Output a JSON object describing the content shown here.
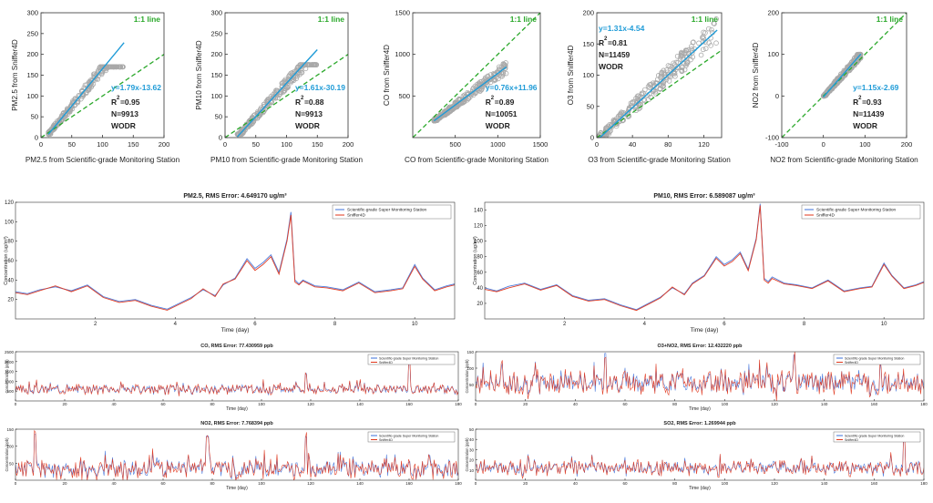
{
  "colors": {
    "scatter_gray": "#a9a9a9",
    "fit_blue": "#1f9bd7",
    "one_to_one_green": "#2aa82a",
    "series_blue": "#3b6fd9",
    "series_red": "#e0361b",
    "text_black": "#222222"
  },
  "chart_data": [
    {
      "type": "scatter",
      "xlabel": "PM2.5 from Scientific-grade Monitoring Station",
      "ylabel": "PM2.5 from Sniffer4D",
      "xlim": [
        0,
        200
      ],
      "ylim": [
        0,
        300
      ],
      "xticks": [
        "0",
        "50",
        "100",
        "150",
        "200"
      ],
      "yticks": [
        "0",
        "50",
        "100",
        "150",
        "200",
        "250",
        "300"
      ],
      "one_to_one_label": "1:1 line",
      "fit_equation": "y=1.79x-13.62",
      "fit": {
        "slope": 1.79,
        "intercept": -13.62
      },
      "r2_label": "R",
      "r2_sup": "2",
      "r2_value": "=0.95",
      "n_label": "N=9913",
      "method_label": "WODR",
      "cloud": {
        "x_range": [
          12,
          135
        ],
        "y_range": [
          8,
          170
        ]
      }
    },
    {
      "type": "scatter",
      "xlabel": "PM10 from Scientific-grade Monitoring Station",
      "ylabel": "PM10 from Sniffer4D",
      "xlim": [
        0,
        200
      ],
      "ylim": [
        0,
        300
      ],
      "xticks": [
        "0",
        "50",
        "100",
        "150",
        "200"
      ],
      "yticks": [
        "0",
        "50",
        "100",
        "150",
        "200",
        "250",
        "300"
      ],
      "one_to_one_label": "1:1 line",
      "fit_equation": "y=1.61x-30.19",
      "fit": {
        "slope": 1.61,
        "intercept": -30.19
      },
      "r2_label": "R",
      "r2_sup": "2",
      "r2_value": "=0.88",
      "n_label": "N=9913",
      "method_label": "WODR",
      "cloud": {
        "x_range": [
          20,
          150
        ],
        "y_range": [
          8,
          175
        ]
      }
    },
    {
      "type": "scatter",
      "xlabel": "CO from Scientific-grade Monitoring Station",
      "ylabel": "CO from Sniffer4D",
      "xlim": [
        0,
        1500
      ],
      "ylim": [
        0,
        1500
      ],
      "xticks": [
        "500",
        "1000",
        "1500"
      ],
      "yticks": [
        "500",
        "1000",
        "1500"
      ],
      "one_to_one_label": "1:1 line",
      "fit_equation": "y=0.76x+11.96",
      "fit": {
        "slope": 0.76,
        "intercept": 11.96
      },
      "r2_label": "R",
      "r2_sup": "2",
      "r2_value": "=0.89",
      "n_label": "N=10051",
      "method_label": "WODR",
      "cloud": {
        "x_range": [
          250,
          1100
        ],
        "y_range": [
          200,
          900
        ]
      }
    },
    {
      "type": "scatter",
      "xlabel": "O3 from Scientific-grade Monitoring Station",
      "ylabel": "O3 from Sniffer4D",
      "xlim": [
        0,
        140
      ],
      "ylim": [
        0,
        200
      ],
      "xticks": [
        "0",
        "40",
        "80",
        "120"
      ],
      "yticks": [
        "0",
        "50",
        "100",
        "150",
        "200"
      ],
      "one_to_one_label": "1:1 line",
      "fit_equation": "y=1.31x-4.54",
      "fit": {
        "slope": 1.31,
        "intercept": -4.54
      },
      "r2_label": "R",
      "r2_sup": "2",
      "r2_value": "=0.81",
      "n_label": "N=11459",
      "method_label": "WODR",
      "cloud": {
        "x_range": [
          0,
          135
        ],
        "y_range": [
          0,
          190
        ]
      }
    },
    {
      "type": "scatter",
      "xlabel": "NO2 from Scientific-grade Monitoring Station",
      "ylabel": "NO2 from Sniffer4D",
      "xlim": [
        -100,
        200
      ],
      "ylim": [
        -100,
        200
      ],
      "xticks": [
        "-100",
        "0",
        "100",
        "200"
      ],
      "yticks": [
        "-100",
        "0",
        "100",
        "200"
      ],
      "one_to_one_label": "1:1 line",
      "fit_equation": "y=1.15x-2.69",
      "fit": {
        "slope": 1.15,
        "intercept": -2.69
      },
      "r2_label": "R",
      "r2_sup": "2",
      "r2_value": "=0.93",
      "n_label": "N=11439",
      "method_label": "WODR",
      "cloud": {
        "x_range": [
          0,
          90
        ],
        "y_range": [
          0,
          100
        ]
      }
    },
    {
      "type": "line",
      "title": "PM2.5,  RMS Error: 4.649170 ug/m³",
      "xlabel": "Time (day)",
      "ylabel": "Concentration (ug/m³)",
      "xlim": [
        0,
        11
      ],
      "ylim": [
        0,
        120
      ],
      "xticks": [
        "2",
        "4",
        "6",
        "8",
        "10"
      ],
      "yticks": [
        "20",
        "40",
        "60",
        "80",
        "100",
        "120"
      ],
      "legend": [
        "Scientific-grade Super Monitoring Station",
        "Sniffer4D"
      ],
      "legend_position": "top-right",
      "x": [
        0,
        0.3,
        0.6,
        1,
        1.4,
        1.8,
        2.2,
        2.6,
        3,
        3.4,
        3.8,
        4.1,
        4.4,
        4.7,
        5,
        5.2,
        5.5,
        5.8,
        6,
        6.2,
        6.4,
        6.6,
        6.8,
        6.9,
        7,
        7.1,
        7.2,
        7.5,
        7.8,
        8.2,
        8.6,
        9,
        9.4,
        9.7,
        10,
        10.2,
        10.5,
        10.8,
        11
      ],
      "series": [
        {
          "name": "Scientific-grade Super Monitoring Station",
          "values": [
            28,
            26,
            30,
            33,
            29,
            35,
            23,
            18,
            20,
            14,
            10,
            16,
            22,
            30,
            24,
            35,
            42,
            62,
            52,
            58,
            66,
            48,
            82,
            110,
            40,
            36,
            40,
            34,
            33,
            30,
            38,
            28,
            30,
            32,
            56,
            42,
            30,
            34,
            36
          ]
        },
        {
          "name": "Sniffer4D",
          "values": [
            27,
            25,
            29,
            34,
            28,
            34,
            22,
            17,
            19,
            13,
            9,
            15,
            21,
            31,
            23,
            36,
            41,
            60,
            50,
            56,
            64,
            46,
            80,
            107,
            38,
            35,
            39,
            33,
            32,
            29,
            37,
            27,
            29,
            31,
            54,
            41,
            29,
            33,
            35
          ]
        }
      ]
    },
    {
      "type": "line",
      "title": "PM10,  RMS Error: 6.589087 ug/m³",
      "xlabel": "Time (day)",
      "ylabel": "Concentration (ug/m³)",
      "xlim": [
        0,
        11
      ],
      "ylim": [
        0,
        150
      ],
      "xticks": [
        "2",
        "4",
        "6",
        "8",
        "10"
      ],
      "yticks": [
        "20",
        "40",
        "60",
        "80",
        "100",
        "120",
        "140"
      ],
      "legend": [
        "Scientific-grade Super Monitoring Station",
        "Sniffer4D"
      ],
      "legend_position": "top-right",
      "x": [
        0,
        0.3,
        0.6,
        1,
        1.4,
        1.8,
        2.2,
        2.6,
        3,
        3.4,
        3.8,
        4.1,
        4.4,
        4.7,
        5,
        5.2,
        5.5,
        5.8,
        6,
        6.2,
        6.4,
        6.6,
        6.8,
        6.9,
        7,
        7.1,
        7.2,
        7.5,
        7.8,
        8.2,
        8.6,
        9,
        9.4,
        9.7,
        10,
        10.2,
        10.5,
        10.8,
        11
      ],
      "series": [
        {
          "name": "Scientific-grade Super Monitoring Station",
          "values": [
            40,
            36,
            42,
            46,
            38,
            44,
            30,
            24,
            26,
            18,
            12,
            20,
            28,
            40,
            32,
            46,
            56,
            80,
            70,
            76,
            86,
            64,
            104,
            148,
            52,
            48,
            54,
            46,
            44,
            40,
            50,
            36,
            40,
            42,
            72,
            56,
            40,
            44,
            48
          ]
        },
        {
          "name": "Sniffer4D",
          "values": [
            38,
            35,
            40,
            45,
            37,
            43,
            29,
            23,
            25,
            17,
            11,
            19,
            27,
            41,
            31,
            45,
            55,
            78,
            68,
            74,
            84,
            62,
            102,
            146,
            50,
            46,
            52,
            45,
            43,
            39,
            49,
            35,
            39,
            41,
            70,
            55,
            39,
            43,
            47
          ]
        }
      ]
    },
    {
      "type": "line",
      "title": "CO,  RMS Error: 77.430959 ppb",
      "xlabel": "Time (day)",
      "ylabel": "Concentration (ppb)",
      "xlim": [
        0,
        180
      ],
      "ylim": [
        0,
        2500
      ],
      "xticks": [
        "0",
        "20",
        "40",
        "60",
        "80",
        "100",
        "120",
        "140",
        "160",
        "180"
      ],
      "yticks": [
        "500",
        "1000",
        "1500",
        "2000",
        "2500"
      ],
      "legend": [
        "Scientific-grade Super Monitoring Station",
        "Sniffer4D"
      ],
      "legend_position": "top-right",
      "noise": {
        "seed": 3,
        "base": 520,
        "amp": 450,
        "spikes": [
          [
            118,
            1400
          ],
          [
            160,
            2100
          ]
        ]
      }
    },
    {
      "type": "line",
      "title": "O3+NO2,  RMS Error: 12.432220 ppb",
      "xlabel": "Time (day)",
      "ylabel": "Concentration (ppb)",
      "xlim": [
        0,
        180
      ],
      "ylim": [
        0,
        150
      ],
      "xticks": [
        "0",
        "20",
        "40",
        "60",
        "80",
        "100",
        "120",
        "140",
        "160",
        "180"
      ],
      "yticks": [
        "50",
        "100",
        "150"
      ],
      "legend": [
        "Scientific-grade Super Monitoring Station",
        "Sniffer4D"
      ],
      "legend_position": "top-right",
      "noise": {
        "seed": 7,
        "base": 45,
        "amp": 70,
        "spikes": [
          [
            52,
            145
          ],
          [
            128,
            140
          ]
        ]
      }
    },
    {
      "type": "line",
      "title": "NO2,  RMS Error: 7.768394 ppb",
      "xlabel": "Time (day)",
      "ylabel": "Concentration (ppb)",
      "xlim": [
        0,
        180
      ],
      "ylim": [
        0,
        150
      ],
      "xticks": [
        "0",
        "20",
        "40",
        "60",
        "80",
        "100",
        "120",
        "140",
        "160",
        "180"
      ],
      "yticks": [
        "50",
        "100",
        "150"
      ],
      "legend": [
        "Scientific-grade Super Monitoring Station",
        "Sniffer4D"
      ],
      "legend_position": "top-right",
      "noise": {
        "seed": 11,
        "base": 25,
        "amp": 55,
        "spikes": [
          [
            8,
            135
          ],
          [
            78,
            130
          ],
          [
            118,
            128
          ]
        ]
      }
    },
    {
      "type": "line",
      "title": "SO2,  RMS Error: 1.269944 ppb",
      "xlabel": "Time (day)",
      "ylabel": "Concentration (ppb)",
      "xlim": [
        0,
        180
      ],
      "ylim": [
        0,
        50
      ],
      "xticks": [
        "0",
        "20",
        "40",
        "60",
        "80",
        "100",
        "120",
        "140",
        "160",
        "180"
      ],
      "yticks": [
        "10",
        "20",
        "30",
        "40",
        "50"
      ],
      "legend": [
        "Scientific-grade Super Monitoring Station",
        "Sniffer4D"
      ],
      "legend_position": "top-right",
      "noise": {
        "seed": 19,
        "base": 10,
        "amp": 14,
        "spikes": [
          [
            172,
            45
          ]
        ]
      }
    }
  ]
}
